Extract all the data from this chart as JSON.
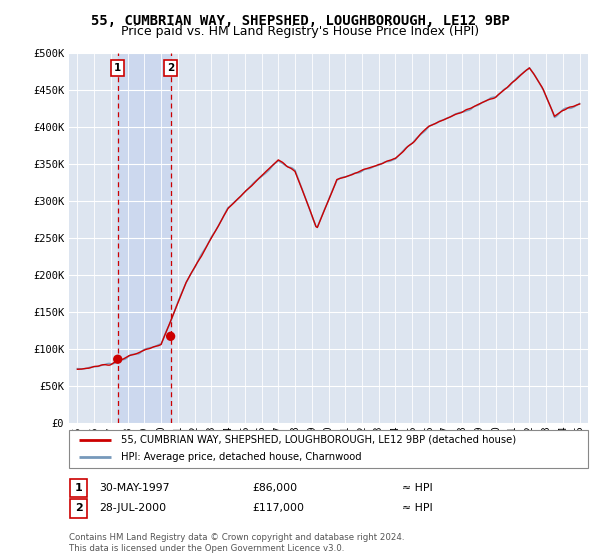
{
  "title": "55, CUMBRIAN WAY, SHEPSHED, LOUGHBOROUGH, LE12 9BP",
  "subtitle": "Price paid vs. HM Land Registry's House Price Index (HPI)",
  "ylabel_ticks": [
    "£0",
    "£50K",
    "£100K",
    "£150K",
    "£200K",
    "£250K",
    "£300K",
    "£350K",
    "£400K",
    "£450K",
    "£500K"
  ],
  "ytick_values": [
    0,
    50000,
    100000,
    150000,
    200000,
    250000,
    300000,
    350000,
    400000,
    450000,
    500000
  ],
  "xlim": [
    1994.5,
    2025.5
  ],
  "ylim": [
    0,
    500000
  ],
  "sale1_year": 1997.41,
  "sale1_price": 86000,
  "sale1_label": "1",
  "sale2_year": 2000.57,
  "sale2_price": 117000,
  "sale2_label": "2",
  "legend_line1": "55, CUMBRIAN WAY, SHEPSHED, LOUGHBOROUGH, LE12 9BP (detached house)",
  "legend_line2": "HPI: Average price, detached house, Charnwood",
  "table_row1_num": "1",
  "table_row1_date": "30-MAY-1997",
  "table_row1_price": "£86,000",
  "table_row1_hpi": "≈ HPI",
  "table_row2_num": "2",
  "table_row2_date": "28-JUL-2000",
  "table_row2_price": "£117,000",
  "table_row2_hpi": "≈ HPI",
  "copyright": "Contains HM Land Registry data © Crown copyright and database right 2024.\nThis data is licensed under the Open Government Licence v3.0.",
  "line_color_red": "#cc0000",
  "line_color_blue": "#7799bb",
  "bg_color": "#dde5f0",
  "shade_color": "#ccd8ee",
  "grid_color": "#ffffff",
  "title_fontsize": 10,
  "subtitle_fontsize": 9
}
